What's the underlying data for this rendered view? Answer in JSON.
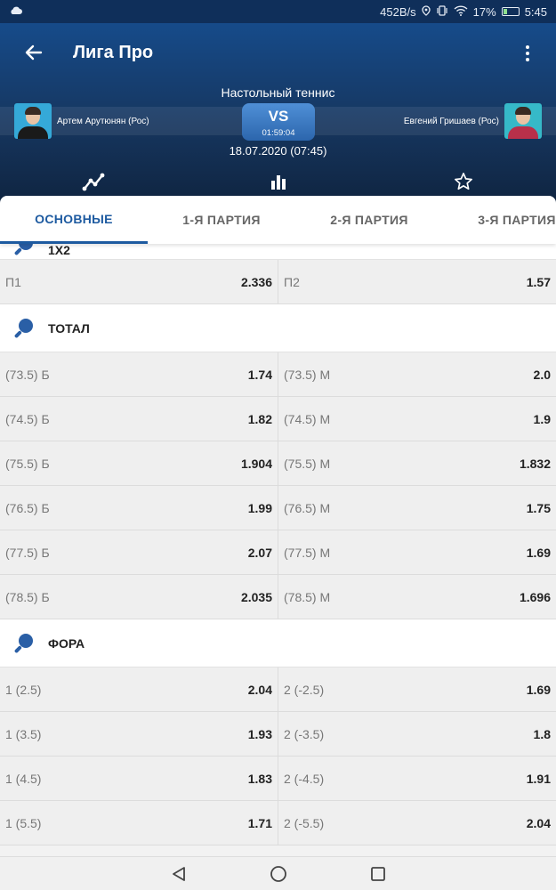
{
  "status": {
    "speed": "452B/s",
    "battery": "17%",
    "time": "5:45"
  },
  "header": {
    "title": "Лига Про"
  },
  "match": {
    "sport": "Настольный теннис",
    "player1": "Артем Арутюнян (Рос)",
    "player2": "Евгений Гришаев (Рос)",
    "vs": "VS",
    "timer": "01:59:04",
    "datetime": "18.07.2020 (07:45)"
  },
  "tabs": [
    {
      "label": "ОСНОВНЫЕ",
      "active": true
    },
    {
      "label": "1-Я ПАРТИЯ"
    },
    {
      "label": "2-Я ПАРТИЯ"
    },
    {
      "label": "3-Я ПАРТИЯ"
    }
  ],
  "sections": {
    "x2": {
      "title": "1X2",
      "rows": [
        {
          "l_label": "П1",
          "l_odd": "2.336",
          "r_label": "П2",
          "r_odd": "1.57"
        }
      ]
    },
    "total": {
      "title": "ТОТАЛ",
      "rows": [
        {
          "l_label": "(73.5) Б",
          "l_odd": "1.74",
          "r_label": "(73.5) М",
          "r_odd": "2.0"
        },
        {
          "l_label": "(74.5) Б",
          "l_odd": "1.82",
          "r_label": "(74.5) М",
          "r_odd": "1.9"
        },
        {
          "l_label": "(75.5) Б",
          "l_odd": "1.904",
          "r_label": "(75.5) М",
          "r_odd": "1.832"
        },
        {
          "l_label": "(76.5) Б",
          "l_odd": "1.99",
          "r_label": "(76.5) М",
          "r_odd": "1.75"
        },
        {
          "l_label": "(77.5) Б",
          "l_odd": "2.07",
          "r_label": "(77.5) М",
          "r_odd": "1.69"
        },
        {
          "l_label": "(78.5) Б",
          "l_odd": "2.035",
          "r_label": "(78.5) М",
          "r_odd": "1.696"
        }
      ]
    },
    "fora": {
      "title": "ФОРА",
      "rows": [
        {
          "l_label": "1 (2.5)",
          "l_odd": "2.04",
          "r_label": "2 (-2.5)",
          "r_odd": "1.69"
        },
        {
          "l_label": "1 (3.5)",
          "l_odd": "1.93",
          "r_label": "2 (-3.5)",
          "r_odd": "1.8"
        },
        {
          "l_label": "1 (4.5)",
          "l_odd": "1.83",
          "r_label": "2 (-4.5)",
          "r_odd": "1.91"
        },
        {
          "l_label": "1 (5.5)",
          "l_odd": "1.71",
          "r_label": "2 (-5.5)",
          "r_odd": "2.04"
        }
      ]
    }
  },
  "icons": {
    "status": [
      "cloud-icon",
      "location-icon",
      "vibrate-icon",
      "wifi-icon",
      "battery-icon"
    ],
    "header": [
      "back-arrow-icon",
      "more-vert-icon"
    ],
    "hero": [
      "line-chart-icon",
      "bar-chart-icon",
      "star-icon"
    ],
    "section": "table-tennis-paddle-icon",
    "nav": [
      "back-triangle-icon",
      "home-circle-icon",
      "recents-square-icon"
    ]
  },
  "colors": {
    "header_bg": "#164b8a",
    "accent": "#1d5aa0",
    "vs_bg": "#2c66ad"
  }
}
